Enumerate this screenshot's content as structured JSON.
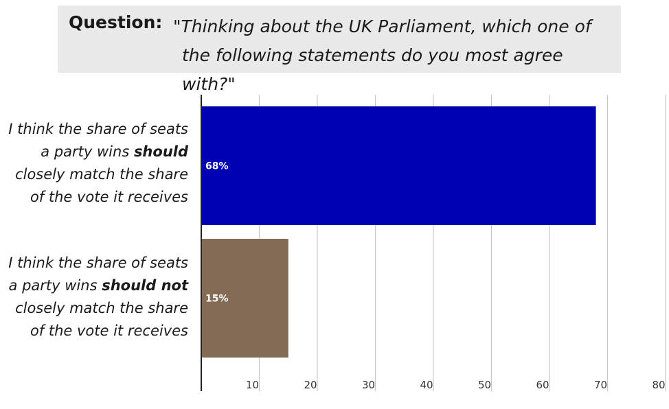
{
  "question": {
    "label": "Question:",
    "text_line1": "\"Thinking about the UK Parliament, which one of",
    "text_line2": "the following statements do you most agree with?\""
  },
  "chart_data": {
    "type": "bar",
    "orientation": "horizontal",
    "categories": [
      {
        "pre": "I think the share of seats a party wins ",
        "emph": "should",
        "post": " closely match the share of the vote it receives",
        "lines": [
          {
            "pre": "I think the share of seats",
            "emph": "",
            "post": ""
          },
          {
            "pre": "a party wins ",
            "emph": "should",
            "post": ""
          },
          {
            "pre": "closely match the share",
            "emph": "",
            "post": ""
          },
          {
            "pre": "of the vote it receives",
            "emph": "",
            "post": ""
          }
        ]
      },
      {
        "pre": "I think the share of seats a party wins ",
        "emph": "should not",
        "post": " closely match the share of the vote it receives",
        "lines": [
          {
            "pre": "I think the share of seats",
            "emph": "",
            "post": ""
          },
          {
            "pre": "a party wins ",
            "emph": "should not",
            "post": ""
          },
          {
            "pre": "closely match the share",
            "emph": "",
            "post": ""
          },
          {
            "pre": "of the vote it receives",
            "emph": "",
            "post": ""
          }
        ]
      }
    ],
    "values": [
      68,
      15
    ],
    "data_labels": [
      "68%",
      "15%"
    ],
    "colors": [
      "#0000b3",
      "#836b55"
    ],
    "xlim": [
      0,
      80
    ],
    "xticks": [
      10,
      20,
      30,
      40,
      50,
      60,
      70,
      80
    ],
    "grid": true
  }
}
